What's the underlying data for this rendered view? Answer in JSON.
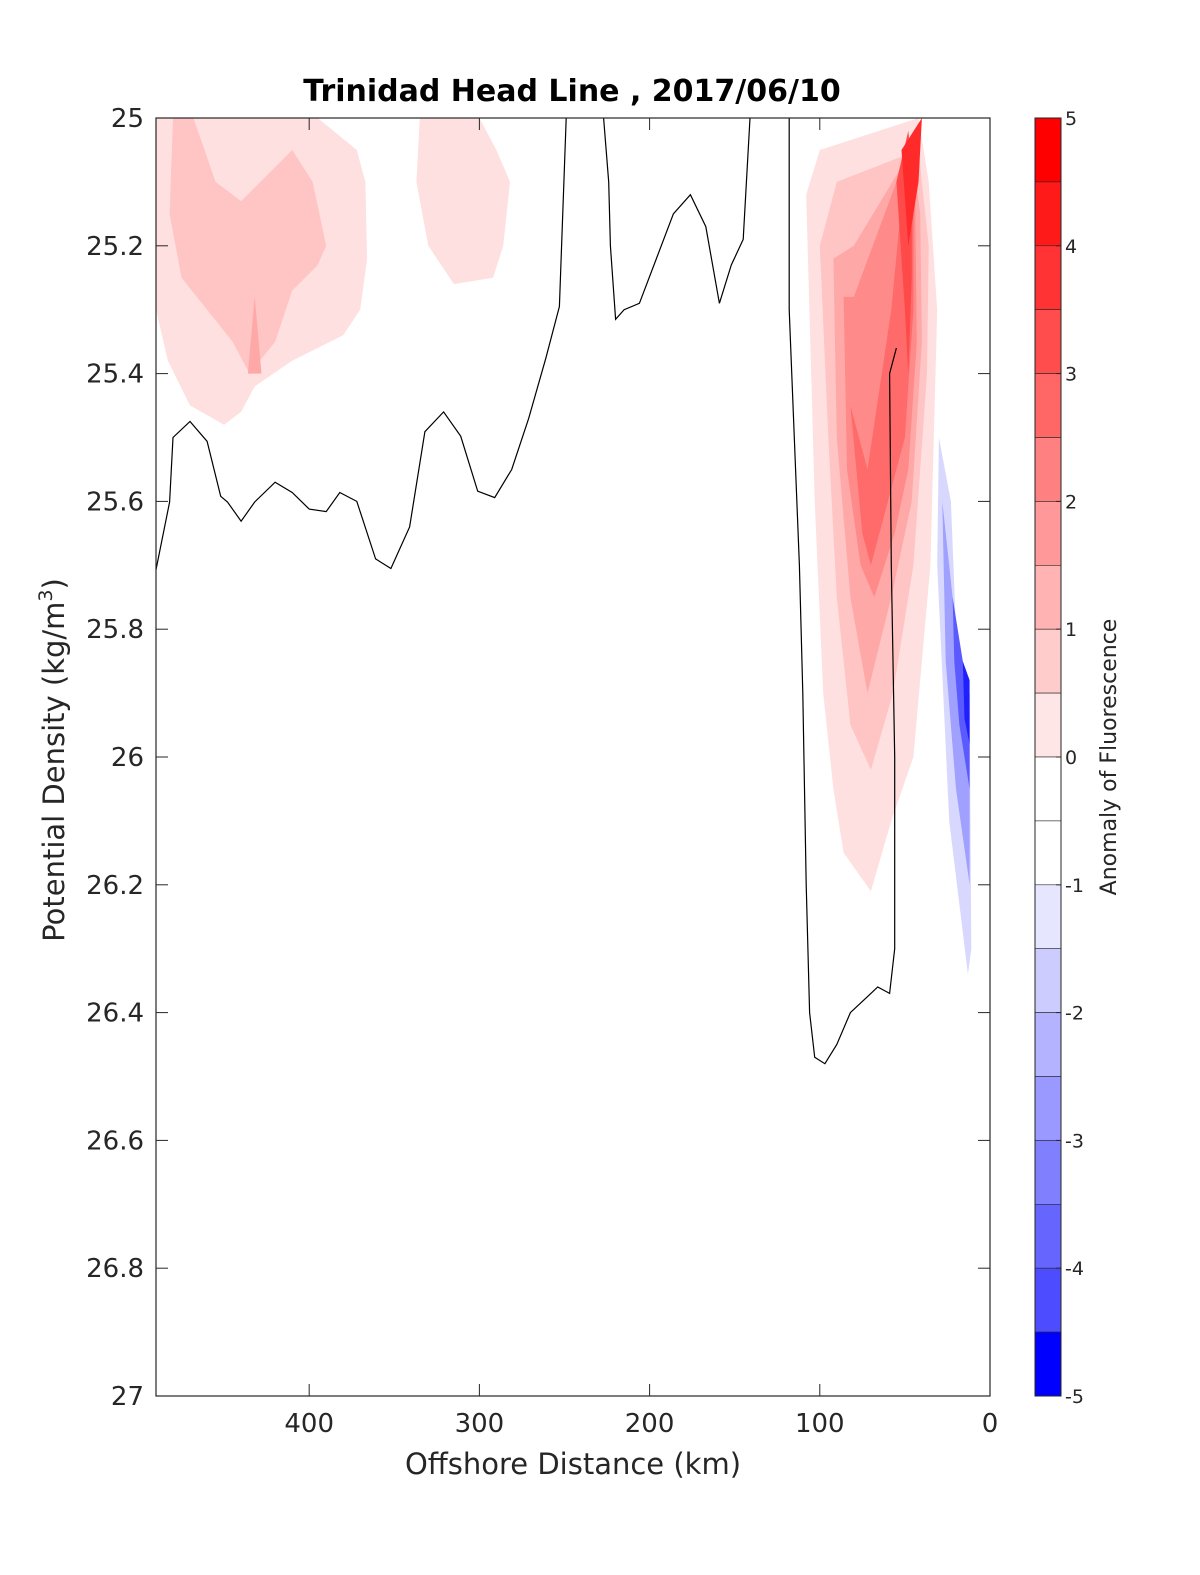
{
  "chart_data": {
    "type": "contour",
    "title": "Trinidad Head Line , 2017/06/10",
    "xlabel": "Offshore Distance (km)",
    "ylabel": "Potential Density (kg/m",
    "ylabel_sup": "3",
    "ylabel_close": ")",
    "xlim": [
      490,
      0
    ],
    "ylim": [
      25,
      27
    ],
    "xticks": [
      400,
      300,
      200,
      100,
      0
    ],
    "yticks": [
      25,
      25.2,
      25.4,
      25.6,
      25.8,
      26,
      26.2,
      26.4,
      26.6,
      26.8,
      27
    ],
    "colorbar": {
      "label": "Anomaly of Fluorescence",
      "range": [
        -5,
        5
      ],
      "ticks": [
        5,
        4,
        3,
        2,
        1,
        0,
        -1,
        -2,
        -3,
        -4,
        -5
      ],
      "levels": [
        {
          "from": 4.5,
          "to": 5,
          "color": "#ff0000"
        },
        {
          "from": 4,
          "to": 4.5,
          "color": "#ff1a1a"
        },
        {
          "from": 3.5,
          "to": 4,
          "color": "#ff3333"
        },
        {
          "from": 3,
          "to": 3.5,
          "color": "#ff4d4d"
        },
        {
          "from": 2.5,
          "to": 3,
          "color": "#ff6666"
        },
        {
          "from": 2,
          "to": 2.5,
          "color": "#ff8080"
        },
        {
          "from": 1.5,
          "to": 2,
          "color": "#ff9999"
        },
        {
          "from": 1,
          "to": 1.5,
          "color": "#ffb3b3"
        },
        {
          "from": 0.5,
          "to": 1,
          "color": "#ffcccc"
        },
        {
          "from": 0,
          "to": 0.5,
          "color": "#ffe6e6"
        },
        {
          "from": -0.5,
          "to": 0,
          "color": "#ffffff"
        },
        {
          "from": -1,
          "to": -0.5,
          "color": "#ffffff"
        },
        {
          "from": -1.5,
          "to": -1,
          "color": "#e6e6ff"
        },
        {
          "from": -2,
          "to": -1.5,
          "color": "#ccccff"
        },
        {
          "from": -2.5,
          "to": -2,
          "color": "#b3b3ff"
        },
        {
          "from": -3,
          "to": -2.5,
          "color": "#9999ff"
        },
        {
          "from": -3.5,
          "to": -3,
          "color": "#8080ff"
        },
        {
          "from": -4,
          "to": -3.5,
          "color": "#6666ff"
        },
        {
          "from": -4.5,
          "to": -4,
          "color": "#4d4dff"
        },
        {
          "from": -5,
          "to": -4.5,
          "color": "#0000ff"
        }
      ]
    },
    "fill_regions": [
      {
        "name": "offshore-anomaly-level-1",
        "color": "#ffe0e0",
        "points": [
          [
            490,
            25.0
          ],
          [
            395,
            25.0
          ],
          [
            372,
            25.05
          ],
          [
            367,
            25.1
          ],
          [
            366,
            25.22
          ],
          [
            370,
            25.3
          ],
          [
            380,
            25.34
          ],
          [
            410,
            25.38
          ],
          [
            432,
            25.42
          ],
          [
            440,
            25.46
          ],
          [
            450,
            25.48
          ],
          [
            470,
            25.45
          ],
          [
            483,
            25.38
          ],
          [
            490,
            25.3
          ]
        ]
      },
      {
        "name": "offshore-anomaly-level-2",
        "color": "#ffc4c4",
        "points": [
          [
            480,
            25.0
          ],
          [
            468,
            25.0
          ],
          [
            455,
            25.1
          ],
          [
            440,
            25.13
          ],
          [
            410,
            25.05
          ],
          [
            398,
            25.1
          ],
          [
            390,
            25.2
          ],
          [
            395,
            25.23
          ],
          [
            410,
            25.27
          ],
          [
            420,
            25.35
          ],
          [
            435,
            25.4
          ],
          [
            445,
            25.35
          ],
          [
            460,
            25.3
          ],
          [
            475,
            25.25
          ],
          [
            482,
            25.15
          ]
        ]
      },
      {
        "name": "offshore-anomaly-level-3",
        "color": "#ffa8a8",
        "points": [
          [
            432,
            25.28
          ],
          [
            436,
            25.4
          ],
          [
            428,
            25.4
          ]
        ]
      },
      {
        "name": "mid-anomaly-level-1",
        "color": "#ffe0e0",
        "points": [
          [
            335,
            25.0
          ],
          [
            300,
            25.0
          ],
          [
            290,
            25.05
          ],
          [
            282,
            25.1
          ],
          [
            286,
            25.2
          ],
          [
            292,
            25.25
          ],
          [
            315,
            25.26
          ],
          [
            330,
            25.2
          ],
          [
            337,
            25.1
          ]
        ]
      },
      {
        "name": "nearshore-anomaly-level-1",
        "color": "#ffe0e0",
        "points": [
          [
            108,
            25.12
          ],
          [
            103,
            25.6
          ],
          [
            98,
            25.9
          ],
          [
            92,
            26.05
          ],
          [
            86,
            26.15
          ],
          [
            70,
            26.21
          ],
          [
            58,
            26.1
          ],
          [
            45,
            26.0
          ],
          [
            35,
            25.7
          ],
          [
            31,
            25.3
          ],
          [
            36,
            25.1
          ],
          [
            42,
            25.0
          ],
          [
            100,
            25.05
          ]
        ]
      },
      {
        "name": "nearshore-anomaly-level-2",
        "color": "#ffc4c4",
        "points": [
          [
            100,
            25.2
          ],
          [
            95,
            25.5
          ],
          [
            90,
            25.75
          ],
          [
            82,
            25.95
          ],
          [
            70,
            26.02
          ],
          [
            57,
            25.9
          ],
          [
            45,
            25.7
          ],
          [
            37,
            25.4
          ],
          [
            36,
            25.2
          ],
          [
            42,
            25.05
          ],
          [
            90,
            25.1
          ]
        ]
      },
      {
        "name": "nearshore-anomaly-level-3",
        "color": "#ffa8a8",
        "points": [
          [
            92,
            25.22
          ],
          [
            90,
            25.5
          ],
          [
            82,
            25.75
          ],
          [
            72,
            25.9
          ],
          [
            58,
            25.75
          ],
          [
            46,
            25.6
          ],
          [
            40,
            25.35
          ],
          [
            41,
            25.15
          ],
          [
            46,
            25.05
          ],
          [
            80,
            25.2
          ]
        ]
      },
      {
        "name": "nearshore-anomaly-level-4",
        "color": "#ff8a8a",
        "points": [
          [
            86,
            25.28
          ],
          [
            84,
            25.55
          ],
          [
            76,
            25.7
          ],
          [
            68,
            25.75
          ],
          [
            56,
            25.65
          ],
          [
            48,
            25.55
          ],
          [
            43,
            25.35
          ],
          [
            44,
            25.12
          ],
          [
            48,
            25.05
          ],
          [
            80,
            25.28
          ]
        ]
      },
      {
        "name": "nearshore-anomaly-level-5",
        "color": "#ff6a6a",
        "points": [
          [
            82,
            25.45
          ],
          [
            75,
            25.65
          ],
          [
            70,
            25.7
          ],
          [
            60,
            25.6
          ],
          [
            50,
            25.5
          ],
          [
            45,
            25.3
          ],
          [
            45,
            25.1
          ],
          [
            48,
            25.02
          ],
          [
            58,
            25.3
          ],
          [
            72,
            25.55
          ]
        ]
      },
      {
        "name": "nearshore-anomaly-level-6",
        "color": "#ff4a4a",
        "points": [
          [
            55,
            25.1
          ],
          [
            50,
            25.3
          ],
          [
            48,
            25.4
          ],
          [
            46,
            25.25
          ],
          [
            46,
            25.1
          ],
          [
            48,
            25.02
          ]
        ]
      },
      {
        "name": "nearshore-anomaly-level-7",
        "color": "#ff2a2a",
        "points": [
          [
            52,
            25.05
          ],
          [
            48,
            25.2
          ],
          [
            42,
            25.1
          ],
          [
            40,
            25.0
          ]
        ]
      },
      {
        "name": "coastal-negative-level-1",
        "color": "#d8d8ff",
        "points": [
          [
            30,
            25.5
          ],
          [
            23,
            25.6
          ],
          [
            20,
            25.8
          ],
          [
            12,
            25.9
          ],
          [
            11,
            26.3
          ],
          [
            13,
            26.34
          ],
          [
            24,
            26.1
          ],
          [
            31,
            25.7
          ]
        ]
      },
      {
        "name": "coastal-negative-level-2",
        "color": "#a0a0ff",
        "points": [
          [
            28,
            25.6
          ],
          [
            24,
            25.7
          ],
          [
            18,
            25.85
          ],
          [
            12,
            25.95
          ],
          [
            12,
            26.2
          ],
          [
            20,
            26.05
          ],
          [
            26,
            25.85
          ]
        ]
      },
      {
        "name": "coastal-negative-level-3",
        "color": "#5a5aff",
        "points": [
          [
            22,
            25.75
          ],
          [
            16,
            25.85
          ],
          [
            12,
            25.9
          ],
          [
            12,
            26.05
          ],
          [
            18,
            25.95
          ],
          [
            21,
            25.85
          ]
        ]
      },
      {
        "name": "coastal-negative-level-4",
        "color": "#2020ff",
        "points": [
          [
            16,
            25.85
          ],
          [
            12,
            25.88
          ],
          [
            12,
            25.98
          ],
          [
            15,
            25.94
          ]
        ]
      }
    ],
    "contour_lines": [
      {
        "name": "zero-contour-offshore",
        "points": [
          [
            490,
            25.707
          ],
          [
            482,
            25.601
          ],
          [
            480,
            25.5
          ],
          [
            470,
            25.475
          ],
          [
            460,
            25.506
          ],
          [
            452,
            25.592
          ],
          [
            448,
            25.601
          ],
          [
            440,
            25.631
          ],
          [
            432,
            25.601
          ],
          [
            420,
            25.57
          ],
          [
            410,
            25.586
          ],
          [
            400,
            25.612
          ],
          [
            390,
            25.616
          ],
          [
            382,
            25.586
          ],
          [
            372,
            25.6
          ],
          [
            361,
            25.69
          ],
          [
            352,
            25.705
          ],
          [
            341,
            25.64
          ],
          [
            332,
            25.491
          ],
          [
            321,
            25.46
          ],
          [
            311,
            25.498
          ],
          [
            301,
            25.584
          ],
          [
            291,
            25.594
          ],
          [
            281,
            25.55
          ],
          [
            271,
            25.47
          ],
          [
            261,
            25.376
          ],
          [
            253,
            25.295
          ],
          [
            249,
            25.0
          ]
        ]
      },
      {
        "name": "zero-contour-mid",
        "points": [
          [
            227,
            25.0
          ],
          [
            224,
            25.1
          ],
          [
            223,
            25.2
          ],
          [
            220,
            25.315
          ],
          [
            215,
            25.3
          ],
          [
            206,
            25.29
          ],
          [
            196,
            25.22
          ],
          [
            186,
            25.15
          ],
          [
            176,
            25.12
          ],
          [
            167,
            25.17
          ],
          [
            159,
            25.29
          ],
          [
            152,
            25.23
          ],
          [
            145,
            25.19
          ],
          [
            141,
            25.0
          ]
        ]
      },
      {
        "name": "zero-contour-nearshore",
        "points": [
          [
            118,
            25.0
          ],
          [
            118,
            25.3
          ],
          [
            115,
            25.5
          ],
          [
            112,
            25.7
          ],
          [
            110,
            25.9
          ],
          [
            108,
            26.2
          ],
          [
            106,
            26.4
          ],
          [
            103,
            26.47
          ],
          [
            97,
            26.48
          ],
          [
            90,
            26.45
          ],
          [
            82,
            26.4
          ],
          [
            70,
            26.37
          ],
          [
            66,
            26.36
          ],
          [
            59,
            26.37
          ],
          [
            56,
            26.3
          ],
          [
            56,
            26.0
          ],
          [
            58,
            25.7
          ],
          [
            59,
            25.4
          ],
          [
            55,
            25.36
          ]
        ]
      }
    ]
  }
}
